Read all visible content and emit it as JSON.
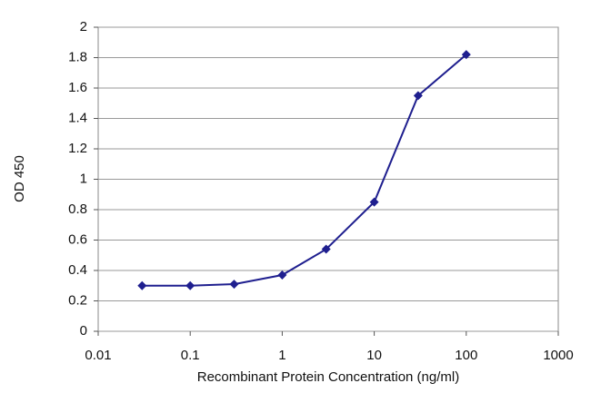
{
  "chart_data": {
    "type": "line",
    "x_label": "Recombinant Protein Concentration (ng/ml)",
    "y_label": "OD 450",
    "x_scale": "log",
    "x": [
      0.03,
      0.1,
      0.3,
      1,
      3,
      10,
      30,
      100
    ],
    "series": [
      {
        "color": "#1f1f8f",
        "values": [
          0.3,
          0.3,
          0.31,
          0.37,
          0.54,
          0.85,
          1.55,
          1.82
        ]
      }
    ],
    "xlim": [
      0.01,
      1000
    ],
    "xticks": [
      0.01,
      0.1,
      1,
      10,
      100,
      1000
    ],
    "ylim": [
      0,
      2
    ],
    "yticks": [
      0,
      0.2,
      0.4,
      0.6,
      0.8,
      1,
      1.2,
      1.4,
      1.6,
      1.8,
      2
    ],
    "grid": true
  }
}
